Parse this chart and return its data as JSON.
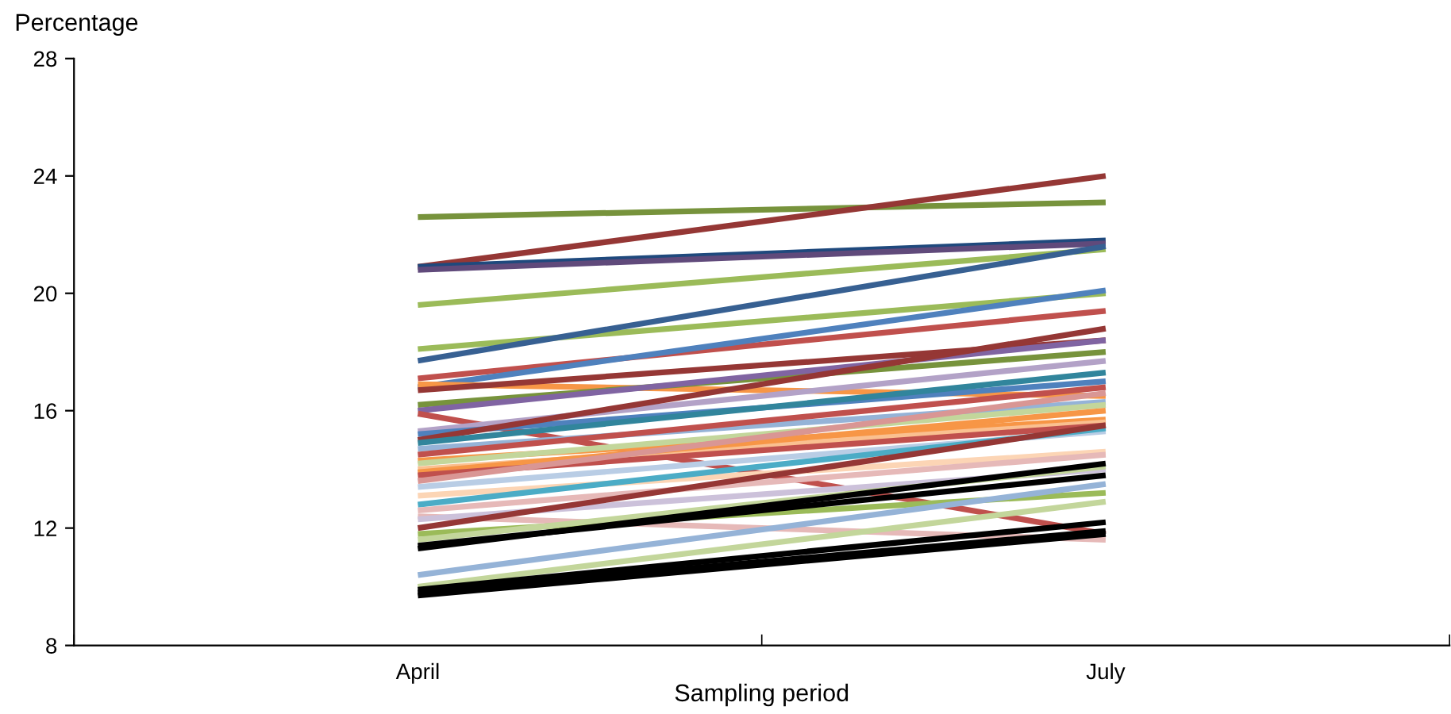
{
  "chart_data": {
    "type": "line",
    "ylabel": "Percentage",
    "xlabel": "Sampling period",
    "categories": [
      "April",
      "July"
    ],
    "ylim": [
      8,
      28
    ],
    "yticks": [
      8,
      12,
      16,
      20,
      24,
      28
    ],
    "grid": false,
    "legend": false,
    "marker": "none",
    "line_style": "solid",
    "series": [
      {
        "color": "#77933c",
        "values": [
          22.6,
          23.1
        ]
      },
      {
        "color": "#953735",
        "values": [
          20.9,
          24.0
        ]
      },
      {
        "color": "#1f497d",
        "values": [
          20.9,
          21.8
        ]
      },
      {
        "color": "#604a7b",
        "values": [
          20.8,
          21.7
        ]
      },
      {
        "color": "#9bbb59",
        "values": [
          19.6,
          21.5
        ]
      },
      {
        "color": "#9bbb59",
        "values": [
          18.1,
          20.0
        ]
      },
      {
        "color": "#376092",
        "values": [
          17.7,
          21.6
        ]
      },
      {
        "color": "#c0504d",
        "values": [
          17.1,
          19.4
        ]
      },
      {
        "color": "#4f81bd",
        "values": [
          16.8,
          20.1
        ]
      },
      {
        "color": "#f79646",
        "values": [
          16.9,
          16.5
        ]
      },
      {
        "color": "#953735",
        "values": [
          16.7,
          18.4
        ]
      },
      {
        "color": "#77933c",
        "values": [
          16.2,
          18.0
        ]
      },
      {
        "color": "#8064a2",
        "values": [
          16.0,
          18.4
        ]
      },
      {
        "color": "#c0504d",
        "values": [
          15.9,
          11.8
        ]
      },
      {
        "color": "#b3a2c7",
        "values": [
          15.3,
          17.7
        ]
      },
      {
        "color": "#4f81bd",
        "values": [
          15.2,
          17.0
        ]
      },
      {
        "color": "#953735",
        "values": [
          15.0,
          18.8
        ]
      },
      {
        "color": "#31859c",
        "values": [
          14.9,
          17.3
        ]
      },
      {
        "color": "#95b3d7",
        "values": [
          14.7,
          16.3
        ]
      },
      {
        "color": "#c0504d",
        "values": [
          14.5,
          16.8
        ]
      },
      {
        "color": "#f79646",
        "values": [
          14.3,
          15.7
        ]
      },
      {
        "color": "#c3d69b",
        "values": [
          14.2,
          16.2
        ]
      },
      {
        "color": "#fac090",
        "values": [
          14.0,
          15.6
        ]
      },
      {
        "color": "#f79646",
        "values": [
          13.9,
          16.0
        ]
      },
      {
        "color": "#c0504d",
        "values": [
          13.8,
          15.5
        ]
      },
      {
        "color": "#d99694",
        "values": [
          13.6,
          16.6
        ]
      },
      {
        "color": "#b9cde5",
        "values": [
          13.4,
          15.3
        ]
      },
      {
        "color": "#fcd5b5",
        "values": [
          13.1,
          14.6
        ]
      },
      {
        "color": "#4bacc6",
        "values": [
          12.8,
          15.4
        ]
      },
      {
        "color": "#e6b9b8",
        "values": [
          12.6,
          14.5
        ]
      },
      {
        "color": "#e6b9b8",
        "values": [
          12.4,
          11.6
        ]
      },
      {
        "color": "#ccc1da",
        "values": [
          12.3,
          14.0
        ]
      },
      {
        "color": "#953735",
        "values": [
          12.0,
          15.5
        ]
      },
      {
        "color": "#9bbb59",
        "values": [
          11.8,
          13.2
        ]
      },
      {
        "color": "#c3d69b",
        "values": [
          11.6,
          14.1
        ]
      },
      {
        "color": "#95b3d7",
        "values": [
          10.4,
          13.5
        ]
      },
      {
        "color": "#c3d69b",
        "values": [
          10.0,
          12.9
        ]
      },
      {
        "color": "#000000",
        "values": [
          11.4,
          13.8
        ]
      },
      {
        "color": "#000000",
        "values": [
          11.3,
          14.2
        ]
      },
      {
        "color": "#000000",
        "values": [
          9.9,
          12.2
        ]
      },
      {
        "color": "#000000",
        "values": [
          9.8,
          11.9
        ]
      },
      {
        "color": "#000000",
        "values": [
          9.7,
          11.8
        ]
      }
    ]
  }
}
